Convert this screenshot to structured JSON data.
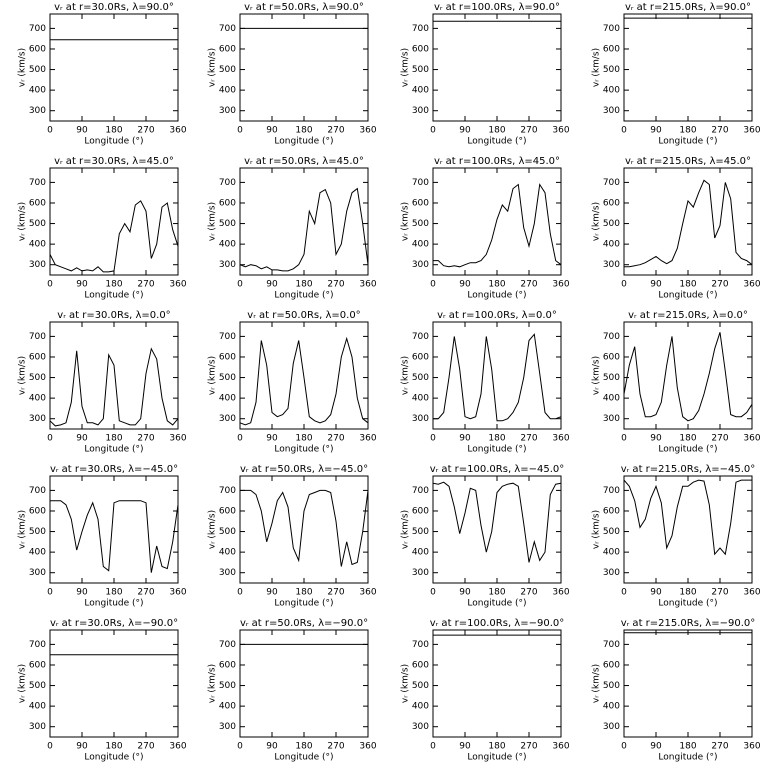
{
  "chart_data": [
    {
      "type": "line",
      "title": "vᵣ at r=30.0Rs, λ=90.0°",
      "xlabel": "Longitude (°)",
      "ylabel": "vᵣ (km/s)",
      "x": [
        0,
        360
      ],
      "values": [
        645,
        645
      ],
      "xlim": [
        0,
        360
      ],
      "ylim": [
        250,
        770
      ],
      "xticks": [
        0,
        90,
        180,
        270,
        360
      ],
      "yticks": [
        300,
        400,
        500,
        600,
        700
      ]
    },
    {
      "type": "line",
      "title": "vᵣ at r=50.0Rs, λ=90.0°",
      "xlabel": "Longitude (°)",
      "ylabel": "vᵣ (km/s)",
      "x": [
        0,
        360
      ],
      "values": [
        700,
        700
      ],
      "xlim": [
        0,
        360
      ],
      "ylim": [
        250,
        770
      ],
      "xticks": [
        0,
        90,
        180,
        270,
        360
      ],
      "yticks": [
        300,
        400,
        500,
        600,
        700
      ]
    },
    {
      "type": "line",
      "title": "vᵣ at r=100.0Rs, λ=90.0°",
      "xlabel": "Longitude (°)",
      "ylabel": "vᵣ (km/s)",
      "x": [
        0,
        360
      ],
      "values": [
        735,
        735
      ],
      "xlim": [
        0,
        360
      ],
      "ylim": [
        250,
        770
      ],
      "xticks": [
        0,
        90,
        180,
        270,
        360
      ],
      "yticks": [
        300,
        400,
        500,
        600,
        700
      ]
    },
    {
      "type": "line",
      "title": "vᵣ at r=215.0Rs, λ=90.0°",
      "xlabel": "Longitude (°)",
      "ylabel": "vᵣ (km/s)",
      "x": [
        0,
        360
      ],
      "values": [
        750,
        750
      ],
      "xlim": [
        0,
        360
      ],
      "ylim": [
        250,
        770
      ],
      "xticks": [
        0,
        90,
        180,
        270,
        360
      ],
      "yticks": [
        300,
        400,
        500,
        600,
        700
      ]
    },
    {
      "type": "line",
      "title": "vᵣ at r=30.0Rs, λ=45.0°",
      "xlabel": "Longitude (°)",
      "ylabel": "vᵣ (km/s)",
      "x": [
        0,
        15,
        30,
        45,
        60,
        75,
        90,
        105,
        120,
        135,
        150,
        165,
        180,
        195,
        210,
        225,
        240,
        255,
        270,
        285,
        300,
        315,
        330,
        345,
        360
      ],
      "values": [
        350,
        300,
        290,
        280,
        270,
        285,
        270,
        275,
        270,
        290,
        265,
        265,
        270,
        450,
        500,
        460,
        590,
        610,
        560,
        330,
        400,
        580,
        600,
        470,
        390
      ],
      "xlim": [
        0,
        360
      ],
      "ylim": [
        250,
        770
      ],
      "xticks": [
        0,
        90,
        180,
        270,
        360
      ],
      "yticks": [
        300,
        400,
        500,
        600,
        700
      ]
    },
    {
      "type": "line",
      "title": "vᵣ at r=50.0Rs, λ=45.0°",
      "xlabel": "Longitude (°)",
      "ylabel": "vᵣ (km/s)",
      "x": [
        0,
        15,
        30,
        45,
        60,
        75,
        90,
        105,
        120,
        135,
        150,
        165,
        180,
        195,
        210,
        225,
        240,
        255,
        270,
        285,
        300,
        315,
        330,
        345,
        360
      ],
      "values": [
        300,
        290,
        300,
        295,
        280,
        290,
        275,
        275,
        270,
        270,
        280,
        300,
        350,
        560,
        500,
        650,
        665,
        600,
        350,
        400,
        560,
        650,
        670,
        500,
        300
      ],
      "xlim": [
        0,
        360
      ],
      "ylim": [
        250,
        770
      ],
      "xticks": [
        0,
        90,
        180,
        270,
        360
      ],
      "yticks": [
        300,
        400,
        500,
        600,
        700
      ]
    },
    {
      "type": "line",
      "title": "vᵣ at r=100.0Rs, λ=45.0°",
      "xlabel": "Longitude (°)",
      "ylabel": "vᵣ (km/s)",
      "x": [
        0,
        15,
        30,
        45,
        60,
        75,
        90,
        105,
        120,
        135,
        150,
        165,
        180,
        195,
        210,
        225,
        240,
        255,
        270,
        285,
        300,
        315,
        330,
        345,
        360
      ],
      "values": [
        320,
        320,
        295,
        290,
        295,
        290,
        300,
        310,
        310,
        320,
        350,
        420,
        520,
        590,
        560,
        670,
        690,
        480,
        390,
        500,
        690,
        650,
        450,
        320,
        300
      ],
      "xlim": [
        0,
        360
      ],
      "ylim": [
        250,
        770
      ],
      "xticks": [
        0,
        90,
        180,
        270,
        360
      ],
      "yticks": [
        300,
        400,
        500,
        600,
        700
      ]
    },
    {
      "type": "line",
      "title": "vᵣ at r=215.0Rs, λ=45.0°",
      "xlabel": "Longitude (°)",
      "ylabel": "vᵣ (km/s)",
      "x": [
        0,
        15,
        30,
        45,
        60,
        75,
        90,
        105,
        120,
        135,
        150,
        165,
        180,
        195,
        210,
        225,
        240,
        255,
        270,
        285,
        300,
        315,
        330,
        345,
        360
      ],
      "values": [
        290,
        290,
        295,
        300,
        310,
        325,
        340,
        320,
        305,
        320,
        380,
        500,
        610,
        580,
        650,
        710,
        690,
        430,
        490,
        700,
        620,
        360,
        330,
        320,
        300
      ],
      "xlim": [
        0,
        360
      ],
      "ylim": [
        250,
        770
      ],
      "xticks": [
        0,
        90,
        180,
        270,
        360
      ],
      "yticks": [
        300,
        400,
        500,
        600,
        700
      ]
    },
    {
      "type": "line",
      "title": "vᵣ at r=30.0Rs, λ=0.0°",
      "xlabel": "Longitude (°)",
      "ylabel": "vᵣ (km/s)",
      "x": [
        0,
        15,
        30,
        45,
        60,
        75,
        90,
        105,
        120,
        135,
        150,
        165,
        180,
        195,
        210,
        225,
        240,
        255,
        270,
        285,
        300,
        315,
        330,
        345,
        360
      ],
      "values": [
        290,
        265,
        270,
        280,
        380,
        630,
        360,
        280,
        280,
        270,
        300,
        610,
        560,
        290,
        280,
        270,
        270,
        300,
        520,
        640,
        590,
        400,
        290,
        270,
        300
      ],
      "xlim": [
        0,
        360
      ],
      "ylim": [
        250,
        770
      ],
      "xticks": [
        0,
        90,
        180,
        270,
        360
      ],
      "yticks": [
        300,
        400,
        500,
        600,
        700
      ]
    },
    {
      "type": "line",
      "title": "vᵣ at r=50.0Rs, λ=0.0°",
      "xlabel": "Longitude (°)",
      "ylabel": "vᵣ (km/s)",
      "x": [
        0,
        15,
        30,
        45,
        60,
        75,
        90,
        105,
        120,
        135,
        150,
        165,
        180,
        195,
        210,
        225,
        240,
        255,
        270,
        285,
        300,
        315,
        330,
        345,
        360
      ],
      "values": [
        280,
        270,
        280,
        380,
        680,
        560,
        330,
        310,
        320,
        350,
        570,
        680,
        500,
        310,
        290,
        280,
        290,
        320,
        420,
        600,
        690,
        600,
        400,
        300,
        280
      ],
      "xlim": [
        0,
        360
      ],
      "ylim": [
        250,
        770
      ],
      "xticks": [
        0,
        90,
        180,
        270,
        360
      ],
      "yticks": [
        300,
        400,
        500,
        600,
        700
      ]
    },
    {
      "type": "line",
      "title": "vᵣ at r=100.0Rs, λ=0.0°",
      "xlabel": "Longitude (°)",
      "ylabel": "vᵣ (km/s)",
      "x": [
        0,
        15,
        30,
        45,
        60,
        75,
        90,
        105,
        120,
        135,
        150,
        165,
        180,
        195,
        210,
        225,
        240,
        255,
        270,
        285,
        300,
        315,
        330,
        345,
        360
      ],
      "values": [
        300,
        300,
        330,
        500,
        700,
        540,
        310,
        300,
        310,
        420,
        700,
        540,
        290,
        290,
        300,
        330,
        380,
        500,
        680,
        710,
        520,
        330,
        300,
        300,
        310
      ],
      "xlim": [
        0,
        360
      ],
      "ylim": [
        250,
        770
      ],
      "xticks": [
        0,
        90,
        180,
        270,
        360
      ],
      "yticks": [
        300,
        400,
        500,
        600,
        700
      ]
    },
    {
      "type": "line",
      "title": "vᵣ at r=215.0Rs, λ=0.0°",
      "xlabel": "Longitude (°)",
      "ylabel": "vᵣ (km/s)",
      "x": [
        0,
        15,
        30,
        45,
        60,
        75,
        90,
        105,
        120,
        135,
        150,
        165,
        180,
        195,
        210,
        225,
        240,
        255,
        270,
        285,
        300,
        315,
        330,
        345,
        360
      ],
      "values": [
        420,
        560,
        650,
        420,
        310,
        310,
        320,
        380,
        560,
        700,
        450,
        310,
        290,
        300,
        340,
        420,
        520,
        640,
        720,
        530,
        320,
        310,
        310,
        330,
        370
      ],
      "xlim": [
        0,
        360
      ],
      "ylim": [
        250,
        770
      ],
      "xticks": [
        0,
        90,
        180,
        270,
        360
      ],
      "yticks": [
        300,
        400,
        500,
        600,
        700
      ]
    },
    {
      "type": "line",
      "title": "vᵣ at r=30.0Rs, λ=−45.0°",
      "xlabel": "Longitude (°)",
      "ylabel": "vᵣ (km/s)",
      "x": [
        0,
        15,
        30,
        45,
        60,
        75,
        90,
        105,
        120,
        135,
        150,
        165,
        180,
        195,
        210,
        225,
        240,
        255,
        270,
        285,
        300,
        315,
        330,
        345,
        360
      ],
      "values": [
        650,
        650,
        650,
        630,
        560,
        410,
        500,
        580,
        640,
        560,
        330,
        310,
        640,
        650,
        650,
        650,
        650,
        650,
        640,
        300,
        430,
        330,
        320,
        450,
        630
      ],
      "xlim": [
        0,
        360
      ],
      "ylim": [
        250,
        770
      ],
      "xticks": [
        0,
        90,
        180,
        270,
        360
      ],
      "yticks": [
        300,
        400,
        500,
        600,
        700
      ]
    },
    {
      "type": "line",
      "title": "vᵣ at r=50.0Rs, λ=−45.0°",
      "xlabel": "Longitude (°)",
      "ylabel": "vᵣ (km/s)",
      "x": [
        0,
        15,
        30,
        45,
        60,
        75,
        90,
        105,
        120,
        135,
        150,
        165,
        180,
        195,
        210,
        225,
        240,
        255,
        270,
        285,
        300,
        315,
        330,
        345,
        360
      ],
      "values": [
        700,
        700,
        700,
        680,
        600,
        450,
        540,
        650,
        690,
        620,
        420,
        360,
        600,
        680,
        690,
        700,
        700,
        690,
        550,
        330,
        450,
        340,
        350,
        500,
        700
      ],
      "xlim": [
        0,
        360
      ],
      "ylim": [
        250,
        770
      ],
      "xticks": [
        0,
        90,
        180,
        270,
        360
      ],
      "yticks": [
        300,
        400,
        500,
        600,
        700
      ]
    },
    {
      "type": "line",
      "title": "vᵣ at r=100.0Rs, λ=−45.0°",
      "xlabel": "Longitude (°)",
      "ylabel": "vᵣ (km/s)",
      "x": [
        0,
        15,
        30,
        45,
        60,
        75,
        90,
        105,
        120,
        135,
        150,
        165,
        180,
        195,
        210,
        225,
        240,
        255,
        270,
        285,
        300,
        315,
        330,
        345,
        360
      ],
      "values": [
        735,
        730,
        740,
        720,
        620,
        490,
        590,
        710,
        700,
        530,
        400,
        500,
        690,
        720,
        730,
        735,
        720,
        540,
        350,
        450,
        360,
        400,
        680,
        730,
        735
      ],
      "xlim": [
        0,
        360
      ],
      "ylim": [
        250,
        770
      ],
      "xticks": [
        0,
        90,
        180,
        270,
        360
      ],
      "yticks": [
        300,
        400,
        500,
        600,
        700
      ]
    },
    {
      "type": "line",
      "title": "vᵣ at r=215.0Rs, λ=−45.0°",
      "xlabel": "Longitude (°)",
      "ylabel": "vᵣ (km/s)",
      "x": [
        0,
        15,
        30,
        45,
        60,
        75,
        90,
        105,
        120,
        135,
        150,
        165,
        180,
        195,
        210,
        225,
        240,
        255,
        270,
        285,
        300,
        315,
        330,
        345,
        360
      ],
      "values": [
        750,
        720,
        650,
        520,
        560,
        660,
        720,
        640,
        420,
        480,
        620,
        720,
        720,
        740,
        750,
        745,
        630,
        390,
        420,
        390,
        540,
        740,
        750,
        750,
        750
      ],
      "xlim": [
        0,
        360
      ],
      "ylim": [
        250,
        770
      ],
      "xticks": [
        0,
        90,
        180,
        270,
        360
      ],
      "yticks": [
        300,
        400,
        500,
        600,
        700
      ]
    },
    {
      "type": "line",
      "title": "vᵣ at r=30.0Rs, λ=−90.0°",
      "xlabel": "Longitude (°)",
      "ylabel": "vᵣ (km/s)",
      "x": [
        0,
        360
      ],
      "values": [
        650,
        650
      ],
      "xlim": [
        0,
        360
      ],
      "ylim": [
        250,
        770
      ],
      "xticks": [
        0,
        90,
        180,
        270,
        360
      ],
      "yticks": [
        300,
        400,
        500,
        600,
        700
      ]
    },
    {
      "type": "line",
      "title": "vᵣ at r=50.0Rs, λ=−90.0°",
      "xlabel": "Longitude (°)",
      "ylabel": "vᵣ (km/s)",
      "x": [
        0,
        360
      ],
      "values": [
        700,
        700
      ],
      "xlim": [
        0,
        360
      ],
      "ylim": [
        250,
        770
      ],
      "xticks": [
        0,
        90,
        180,
        270,
        360
      ],
      "yticks": [
        300,
        400,
        500,
        600,
        700
      ]
    },
    {
      "type": "line",
      "title": "vᵣ at r=100.0Rs, λ=−90.0°",
      "xlabel": "Longitude (°)",
      "ylabel": "vᵣ (km/s)",
      "x": [
        0,
        360
      ],
      "values": [
        745,
        745
      ],
      "xlim": [
        0,
        360
      ],
      "ylim": [
        250,
        770
      ],
      "xticks": [
        0,
        90,
        180,
        270,
        360
      ],
      "yticks": [
        300,
        400,
        500,
        600,
        700
      ]
    },
    {
      "type": "line",
      "title": "vᵣ at r=215.0Rs, λ=−90.0°",
      "xlabel": "Longitude (°)",
      "ylabel": "vᵣ (km/s)",
      "x": [
        0,
        360
      ],
      "values": [
        757,
        757
      ],
      "xlim": [
        0,
        360
      ],
      "ylim": [
        250,
        770
      ],
      "xticks": [
        0,
        90,
        180,
        270,
        360
      ],
      "yticks": [
        300,
        400,
        500,
        600,
        700
      ]
    }
  ]
}
